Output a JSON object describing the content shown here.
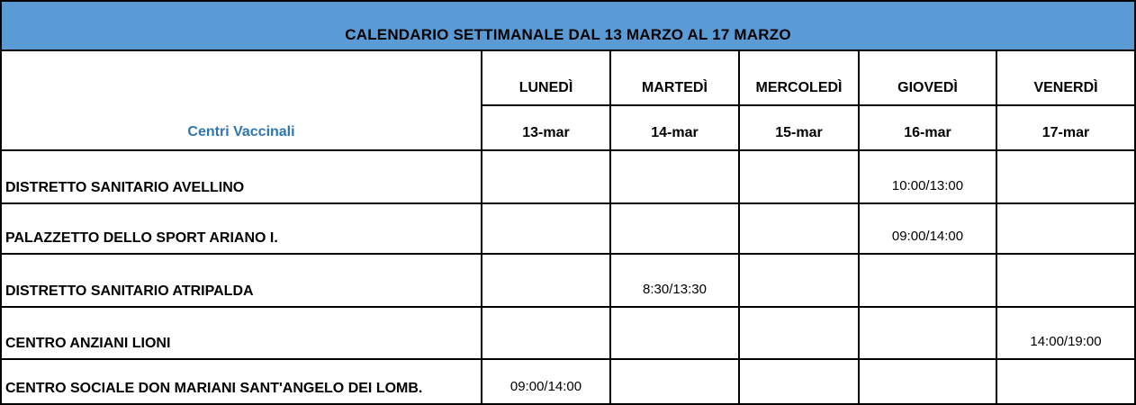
{
  "title": "CALENDARIO SETTIMANALE DAL 13 MARZO AL 17 MARZO",
  "table": {
    "corner_label": "Centri Vaccinali",
    "days": [
      "LUNEDÌ",
      "MARTEDÌ",
      "MERCOLEDÌ",
      "GIOVEDÌ",
      "VENERDÌ"
    ],
    "dates": [
      "13-mar",
      "14-mar",
      "15-mar",
      "16-mar",
      "17-mar"
    ],
    "rows": [
      {
        "center": "DISTRETTO SANITARIO AVELLINO",
        "times": [
          "",
          "",
          "",
          "10:00/13:00",
          ""
        ]
      },
      {
        "center": "PALAZZETTO DELLO SPORT ARIANO I.",
        "times": [
          "",
          "",
          "",
          "09:00/14:00",
          ""
        ]
      },
      {
        "center": "DISTRETTO SANITARIO ATRIPALDA",
        "times": [
          "",
          "8:30/13:30",
          "",
          "",
          ""
        ]
      },
      {
        "center": "CENTRO ANZIANI LIONI",
        "times": [
          "",
          "",
          "",
          "",
          "14:00/19:00"
        ]
      },
      {
        "center": "CENTRO SOCIALE DON MARIANI SANT'ANGELO DEI LOMB.",
        "times": [
          "09:00/14:00",
          "",
          "",
          "",
          ""
        ]
      }
    ]
  },
  "colors": {
    "header_bg": "#5B9BD5",
    "corner_text": "#2E75B6",
    "border": "#000000",
    "cell_bg": "#FFFFFF"
  }
}
